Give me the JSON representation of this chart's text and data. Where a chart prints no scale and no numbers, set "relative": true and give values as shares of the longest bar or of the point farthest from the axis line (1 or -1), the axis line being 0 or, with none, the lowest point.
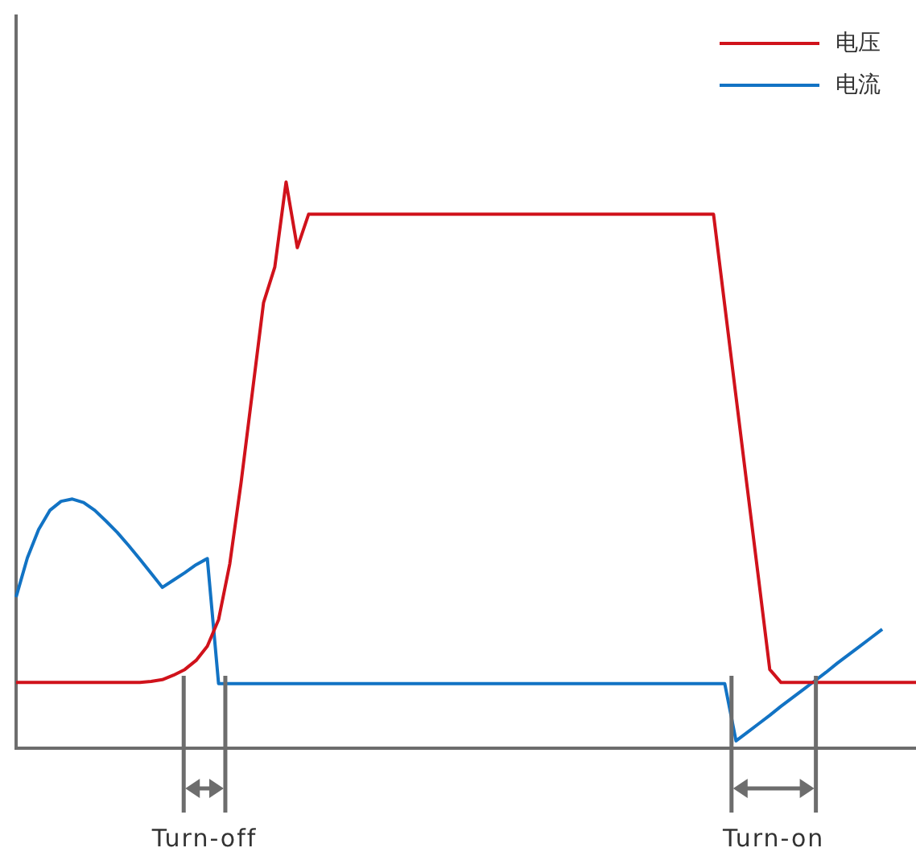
{
  "chart_data": {
    "type": "line",
    "relative": true,
    "grid": false,
    "legend": "top right",
    "marker": "none",
    "line_style": "solid",
    "categories": [
      null,
      null,
      null,
      null,
      null,
      null,
      null,
      null,
      null,
      null,
      null,
      null,
      null,
      null,
      null,
      null,
      null,
      null,
      null,
      null,
      null,
      null,
      null,
      null,
      null,
      null,
      null,
      null,
      null,
      null,
      null,
      null,
      null,
      null,
      null,
      null,
      null,
      null,
      null,
      null,
      null,
      null,
      null,
      null,
      null,
      null,
      null,
      null,
      null,
      null,
      null,
      null,
      null,
      null,
      null,
      null,
      null,
      null,
      null,
      null,
      null,
      null,
      null,
      null,
      null,
      null,
      null,
      null,
      null,
      null,
      null,
      null,
      null,
      null,
      null,
      null,
      null,
      null,
      null,
      null,
      null
    ],
    "series": [
      {
        "name": "电压",
        "color": "#d0121b",
        "values": [
          0.116,
          0.116,
          0.116,
          0.116,
          0.116,
          0.116,
          0.116,
          0.116,
          0.116,
          0.116,
          0.116,
          0.116,
          0.118,
          0.121,
          0.129,
          0.139,
          0.155,
          0.18,
          0.227,
          0.326,
          0.469,
          0.628,
          0.787,
          0.85,
          1,
          0.884,
          0.943,
          0.943,
          0.943,
          0.943,
          0.943,
          0.943,
          0.943,
          0.943,
          0.943,
          0.943,
          0.943,
          0.943,
          0.943,
          0.943,
          0.943,
          0.943,
          0.943,
          0.943,
          0.943,
          0.943,
          0.943,
          0.943,
          0.943,
          0.943,
          0.943,
          0.943,
          0.943,
          0.943,
          0.943,
          0.943,
          0.943,
          0.943,
          0.943,
          0.943,
          0.943,
          0.943,
          0.943,
          0.782,
          0.621,
          0.46,
          0.3,
          0.139,
          0.116,
          0.116,
          0.116,
          0.116,
          0.116,
          0.116,
          0.116,
          0.116,
          0.116,
          0.116,
          0.116,
          0.116,
          0.116
        ]
      },
      {
        "name": "电流",
        "color": "#1273c4",
        "values": [
          0.267,
          0.336,
          0.386,
          0.42,
          0.436,
          0.44,
          0.434,
          0.42,
          0.401,
          0.381,
          0.358,
          0.334,
          0.309,
          0.284,
          0.297,
          0.31,
          0.324,
          0.335,
          0.114,
          0.114,
          0.114,
          0.114,
          0.114,
          0.114,
          0.114,
          0.114,
          0.114,
          0.114,
          0.114,
          0.114,
          0.114,
          0.114,
          0.114,
          0.114,
          0.114,
          0.114,
          0.114,
          0.114,
          0.114,
          0.114,
          0.114,
          0.114,
          0.114,
          0.114,
          0.114,
          0.114,
          0.114,
          0.114,
          0.114,
          0.114,
          0.114,
          0.114,
          0.114,
          0.114,
          0.114,
          0.114,
          0.114,
          0.114,
          0.114,
          0.114,
          0.114,
          0.114,
          0.114,
          0.114,
          0.013,
          0.028,
          0.043,
          0.058,
          0.074,
          0.089,
          0.104,
          0.119,
          0.134,
          0.15,
          0.165,
          0.18,
          0.195,
          0.21,
          null,
          null,
          null
        ]
      }
    ],
    "annotations": [
      "Turn-off",
      "Turn-on"
    ]
  }
}
